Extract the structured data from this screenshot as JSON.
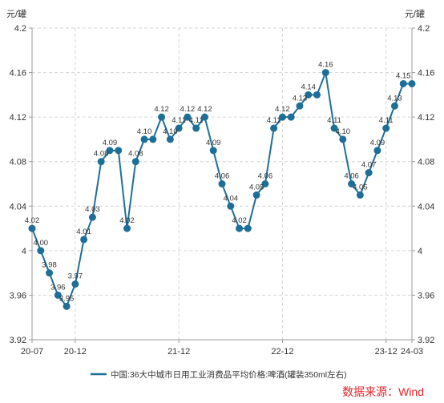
{
  "chart_data": {
    "type": "line",
    "ylabel": "元/罐",
    "ylabel_right": "元/罐",
    "x": [
      "20-07",
      "20-08",
      "20-09",
      "20-10",
      "20-11",
      "20-12",
      "21-01",
      "21-02",
      "21-03",
      "21-04",
      "21-05",
      "21-06",
      "21-07",
      "21-08",
      "21-09",
      "21-10",
      "21-11",
      "21-12",
      "22-01",
      "22-02",
      "22-03",
      "22-04",
      "22-05",
      "22-06",
      "22-07",
      "22-08",
      "22-09",
      "22-10",
      "22-11",
      "22-12",
      "23-01",
      "23-02",
      "23-03",
      "23-04",
      "23-05",
      "23-06",
      "23-07",
      "23-08",
      "23-09",
      "23-10",
      "23-11",
      "23-12",
      "24-01",
      "24-02",
      "24-03"
    ],
    "x_tick_labels": [
      "20-07",
      "20-12",
      "21-12",
      "22-12",
      "23-12",
      "24-03"
    ],
    "y_ticks": [
      4.2,
      4.16,
      4.12,
      4.08,
      4.04,
      4,
      3.96,
      3.92
    ],
    "ylim": [
      3.92,
      4.2
    ],
    "grid": true,
    "legend_position": "bottom",
    "series": [
      {
        "name": "中国:36大中城市日用工业消费品平均价格:啤酒(罐装350ml左右)",
        "color": "#1e6f98",
        "values": [
          4.02,
          4.0,
          3.98,
          3.96,
          3.95,
          3.97,
          4.01,
          4.03,
          4.08,
          4.09,
          4.09,
          4.02,
          4.08,
          4.1,
          4.1,
          4.12,
          4.1,
          4.11,
          4.12,
          4.11,
          4.12,
          4.09,
          4.06,
          4.04,
          4.02,
          4.02,
          4.05,
          4.06,
          4.11,
          4.12,
          4.12,
          4.13,
          4.14,
          4.14,
          4.16,
          4.11,
          4.1,
          4.06,
          4.05,
          4.07,
          4.09,
          4.11,
          4.13,
          4.15,
          4.15
        ],
        "data_labels": [
          "4.02",
          "4.00",
          "3.98",
          "3.96",
          "3.95",
          "3.97",
          "4.01",
          "4.03",
          "4.08",
          "4.09",
          null,
          "4.02",
          "4.08",
          "4.10",
          null,
          "4.12",
          "4.10",
          "4.11",
          "4.12",
          "4.11",
          "4.12",
          "4.09",
          "4.06",
          "4.04",
          "4.02",
          null,
          "4.05",
          "4.06",
          "4.11",
          "4.12",
          null,
          "4.13",
          "4.14",
          null,
          "4.16",
          "4.11",
          "4.10",
          "4.06",
          "4.05",
          "4.07",
          "4.09",
          "4.11",
          "4.13",
          "4.15",
          null
        ]
      }
    ]
  },
  "footer": {
    "source": "数据来源：Wind",
    "source_color": "#e3262b"
  }
}
